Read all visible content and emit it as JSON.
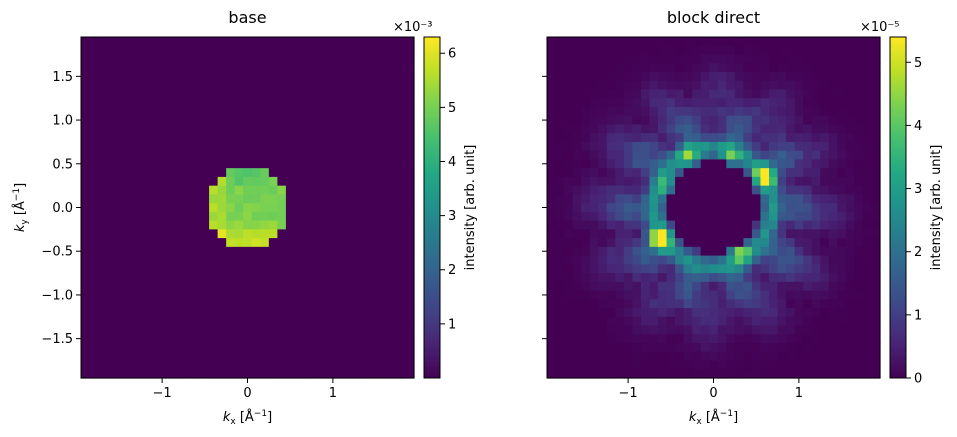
{
  "chart_data": [
    {
      "type": "heatmap",
      "title": "base",
      "xlabel": "k_x [Å⁻¹]",
      "ylabel": "k_y [Å⁻¹]",
      "xlim": [
        -1.95,
        1.95
      ],
      "ylim": [
        -1.95,
        1.95
      ],
      "x_ticks": [
        -1,
        0,
        1
      ],
      "y_ticks": [
        -1.5,
        -1.0,
        -0.5,
        0.0,
        0.5,
        1.0,
        1.5
      ],
      "x_tick_labels": [
        "−1",
        "0",
        "1"
      ],
      "y_tick_labels": [
        "−1.5",
        "−1.0",
        "−0.5",
        "0.0",
        "0.5",
        "1.0",
        "1.5"
      ],
      "grid_cells": 39,
      "pattern": "filled disk",
      "disk_radius": 0.48,
      "colormap": "viridis",
      "colorbar": {
        "label": "intensity [arb. unit]",
        "multiplier": "×10⁻³",
        "min": 0,
        "max": 6.3,
        "ticks": [
          1,
          2,
          3,
          4,
          5,
          6
        ],
        "tick_labels": [
          "1",
          "2",
          "3",
          "4",
          "5",
          "6"
        ]
      }
    },
    {
      "type": "heatmap",
      "title": "block direct",
      "xlabel": "k_x [Å⁻¹]",
      "ylabel": "",
      "xlim": [
        -1.95,
        1.95
      ],
      "ylim": [
        -1.95,
        1.95
      ],
      "x_ticks": [
        -1,
        0,
        1
      ],
      "y_ticks": [
        -1.5,
        -1.0,
        -0.5,
        0.0,
        0.5,
        1.0,
        1.5
      ],
      "x_tick_labels": [
        "−1",
        "0",
        "1"
      ],
      "y_tick_labels": [],
      "grid_cells": 39,
      "pattern": "annulus with dark central hole",
      "hole_radius": 0.53,
      "colormap": "viridis",
      "colorbar": {
        "label": "intensity [arb. unit]",
        "multiplier": "×10⁻⁵",
        "min": 0,
        "max": 5.4,
        "ticks": [
          0,
          1,
          2,
          3,
          4,
          5
        ],
        "tick_labels": [
          "0",
          "1",
          "2",
          "3",
          "4",
          "5"
        ]
      }
    }
  ]
}
